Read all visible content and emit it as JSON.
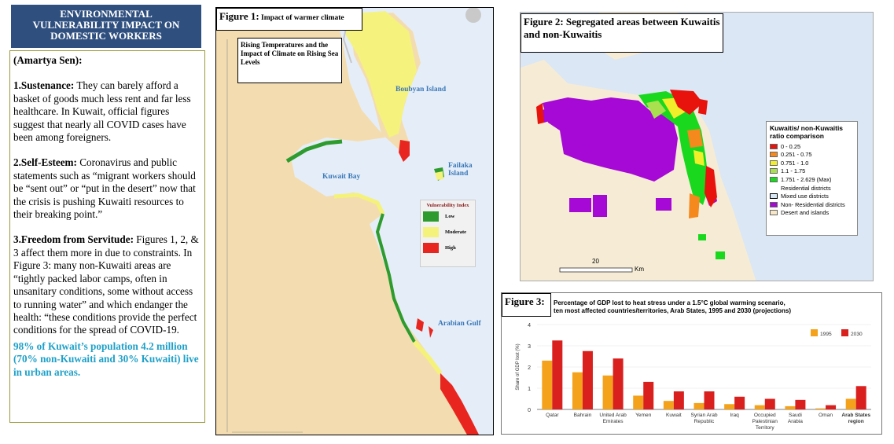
{
  "banner": {
    "line1": "ENVIRONMENTAL",
    "line2": "VULNERABILITY IMPACT ON",
    "line3": "DOMESTIC WORKERS"
  },
  "text_panel": {
    "author": "(Amartya Sen):",
    "item1_head": "1.Sustenance:",
    "item1_body": " They can barely afford a basket of goods much less rent and far less healthcare. In Kuwait, official figures suggest that nearly all COVID cases have been among foreigners.",
    "item2_head": "2.Self-Esteem:",
    "item2_body": " Coronavirus and public statements such as “migrant workers should be “sent out” or “put in the desert” now that the crisis is pushing Kuwaiti resources to their breaking point.”",
    "item3_head": "3.Freedom from Servitude:",
    "item3_body": " Figures 1, 2, & 3 affect them more in due to constraints. In Figure 3: many non-Kuwaiti areas are “tightly packed labor camps, often in unsanitary conditions, some without access to running water” and which endanger the health: “these conditions provide the perfect conditions for the spread of COVID-19.",
    "highlight": "98% of Kuwait’s population 4.2 million (70% non-Kuwaiti and 30% Kuwaiti) live in urban areas."
  },
  "figure1": {
    "caption_label": "Figure 1:",
    "caption_text": " Impact of warmer climate",
    "inset_text": "Rising Temperatures and the Impact of Climate on Rising Sea Levels",
    "labels": {
      "boubyan": "Boubyan Island",
      "failaka": "Failaka Island",
      "kuwait_bay": "Kuwait Bay",
      "arabian_gulf": "Arabian Gulf"
    },
    "legend": {
      "title": "Vulnerability Index",
      "items": [
        {
          "label": "Low",
          "color": "#2e9b2e"
        },
        {
          "label": "Moderate",
          "color": "#f4f27a"
        },
        {
          "label": "High",
          "color": "#e8261f"
        }
      ]
    }
  },
  "figure2": {
    "caption_label": "Figure 2:",
    "caption_text": " Segregated areas between Kuwaitis and non-Kuwaitis",
    "legend": {
      "title": "Kuwaitis/ non-Kuwaitis ratio comparison",
      "items": [
        {
          "label": "0 - 0.25",
          "color": "#e8130c"
        },
        {
          "label": "0.251 - 0.75",
          "color": "#f5891d"
        },
        {
          "label": "0.751 - 1.0",
          "color": "#f2ef2a"
        },
        {
          "label": "1.1 - 1.75",
          "color": "#a9e04f"
        },
        {
          "label": "1.751 - 2.629 (Max)",
          "color": "#19d81d"
        }
      ],
      "sublabel": "Residential districts",
      "extra": [
        {
          "label": "Mixed use districts",
          "color": "#d8e5f3"
        },
        {
          "label": "Non- Residential districts",
          "color": "#a608d6"
        },
        {
          "label": "Desert and islands",
          "color": "#f7e7c6"
        }
      ]
    },
    "scale_value": "20",
    "scale_unit": "Km"
  },
  "figure3": {
    "caption_label": "Figure 3:",
    "title_line1": "Percentage of GDP lost to heat stress under a 1.5°C global warming scenario,",
    "title_line2": "ten most affected countries/territories, Arab States, 1995 and 2030 (projections)"
  },
  "chart_data": {
    "type": "bar",
    "title": "Percentage of GDP lost to heat stress under a 1.5°C global warming scenario, ten most affected countries/territories, Arab States, 1995 and 2030 (projections)",
    "ylabel": "Share of GDP lost (%)",
    "ylim": [
      0,
      4
    ],
    "yticks": [
      "0",
      "1",
      "2",
      "3",
      "4"
    ],
    "categories": [
      [
        "Qatar"
      ],
      [
        "Bahrain"
      ],
      [
        "United Arab",
        "Emirates"
      ],
      [
        "Yemen"
      ],
      [
        "Kuwait"
      ],
      [
        "Syrian Arab",
        "Republic"
      ],
      [
        "Iraq"
      ],
      [
        "Occupied",
        "Palestinian",
        "Territory"
      ],
      [
        "Saudi",
        "Arabia"
      ],
      [
        "Oman"
      ],
      [
        "Arab States",
        "region"
      ]
    ],
    "series": [
      {
        "name": "1995",
        "color": "#f4a21b",
        "values": [
          2.3,
          1.75,
          1.6,
          0.65,
          0.4,
          0.3,
          0.25,
          0.2,
          0.15,
          0.05,
          0.5
        ]
      },
      {
        "name": "2030",
        "color": "#d9201e",
        "values": [
          3.25,
          2.75,
          2.4,
          1.3,
          0.85,
          0.85,
          0.6,
          0.5,
          0.45,
          0.2,
          1.1
        ]
      }
    ],
    "legend_position": "top-right",
    "grid": true
  }
}
